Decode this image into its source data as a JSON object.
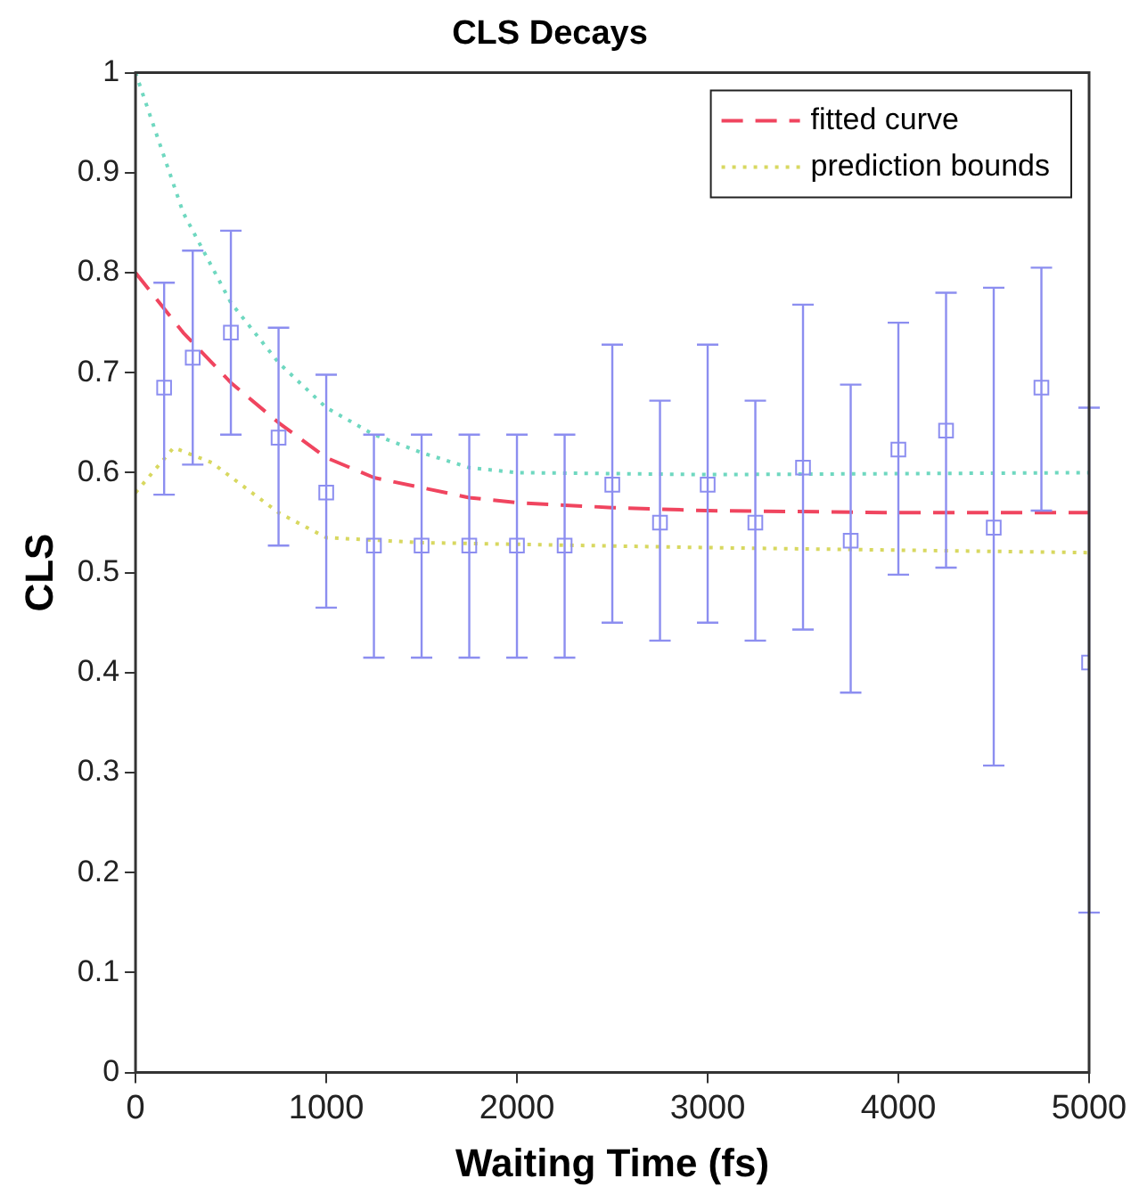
{
  "chart_data": {
    "type": "scatter",
    "title": "CLS Decays",
    "xlabel": "Waiting Time (fs)",
    "ylabel": "CLS",
    "xlim": [
      0,
      5000
    ],
    "xticks": [
      0,
      1000,
      2000,
      3000,
      4000,
      5000
    ],
    "ylim": [
      0,
      1
    ],
    "yticks": [
      0,
      0.1,
      0.2,
      0.3,
      0.4,
      0.5,
      0.6,
      0.7,
      0.8,
      0.9,
      1
    ],
    "grid": false,
    "legend": "top right",
    "series": [
      {
        "color": "#8c8ef0",
        "marker": "square",
        "x": [
          150,
          300,
          500,
          750,
          1000,
          1250,
          1500,
          1750,
          2000,
          2250,
          2500,
          2750,
          3000,
          3250,
          3500,
          3750,
          4000,
          4250,
          4500,
          4750,
          5000
        ],
        "values": [
          0.685,
          0.715,
          0.74,
          0.635,
          0.58,
          0.527,
          0.527,
          0.527,
          0.527,
          0.527,
          0.588,
          0.55,
          0.588,
          0.55,
          0.605,
          0.532,
          0.623,
          0.642,
          0.545,
          0.685,
          0.41
        ],
        "errors": [
          [
            0.578,
            0.79
          ],
          [
            0.608,
            0.822
          ],
          [
            0.638,
            0.842
          ],
          [
            0.527,
            0.745
          ],
          [
            0.465,
            0.698
          ],
          [
            0.415,
            0.638
          ],
          [
            0.415,
            0.638
          ],
          [
            0.415,
            0.638
          ],
          [
            0.415,
            0.638
          ],
          [
            0.415,
            0.638
          ],
          [
            0.45,
            0.728
          ],
          [
            0.432,
            0.672
          ],
          [
            0.45,
            0.728
          ],
          [
            0.432,
            0.672
          ],
          [
            0.443,
            0.768
          ],
          [
            0.38,
            0.688
          ],
          [
            0.498,
            0.75
          ],
          [
            0.505,
            0.78
          ],
          [
            0.307,
            0.785
          ],
          [
            0.562,
            0.805
          ],
          [
            0.16,
            0.665
          ]
        ]
      },
      {
        "type": "line",
        "name": "fitted curve",
        "color": "#f0455f",
        "line_style": "dashed",
        "marker": "none",
        "x": [
          0,
          250,
          500,
          750,
          1000,
          1250,
          1500,
          1750,
          2000,
          2500,
          3000,
          4000,
          5000
        ],
        "values": [
          0.8,
          0.74,
          0.69,
          0.65,
          0.615,
          0.595,
          0.585,
          0.575,
          0.57,
          0.565,
          0.562,
          0.56,
          0.56
        ]
      },
      {
        "type": "line",
        "name": "prediction bounds",
        "color": "#d8d860",
        "line_style": "dotted",
        "marker": "none",
        "x": [
          0,
          200,
          400,
          750,
          1000,
          1500,
          3000,
          5000
        ],
        "values": [
          0.58,
          0.625,
          0.61,
          0.56,
          0.535,
          0.53,
          0.525,
          0.52
        ]
      },
      {
        "type": "line",
        "color": "#6fd8c0",
        "line_style": "dotted",
        "marker": "none",
        "x": [
          0,
          250,
          500,
          750,
          1000,
          1250,
          1500,
          1750,
          2000,
          3000,
          5000
        ],
        "values": [
          1.0,
          0.86,
          0.77,
          0.71,
          0.665,
          0.638,
          0.62,
          0.605,
          0.6,
          0.598,
          0.6
        ]
      }
    ]
  }
}
